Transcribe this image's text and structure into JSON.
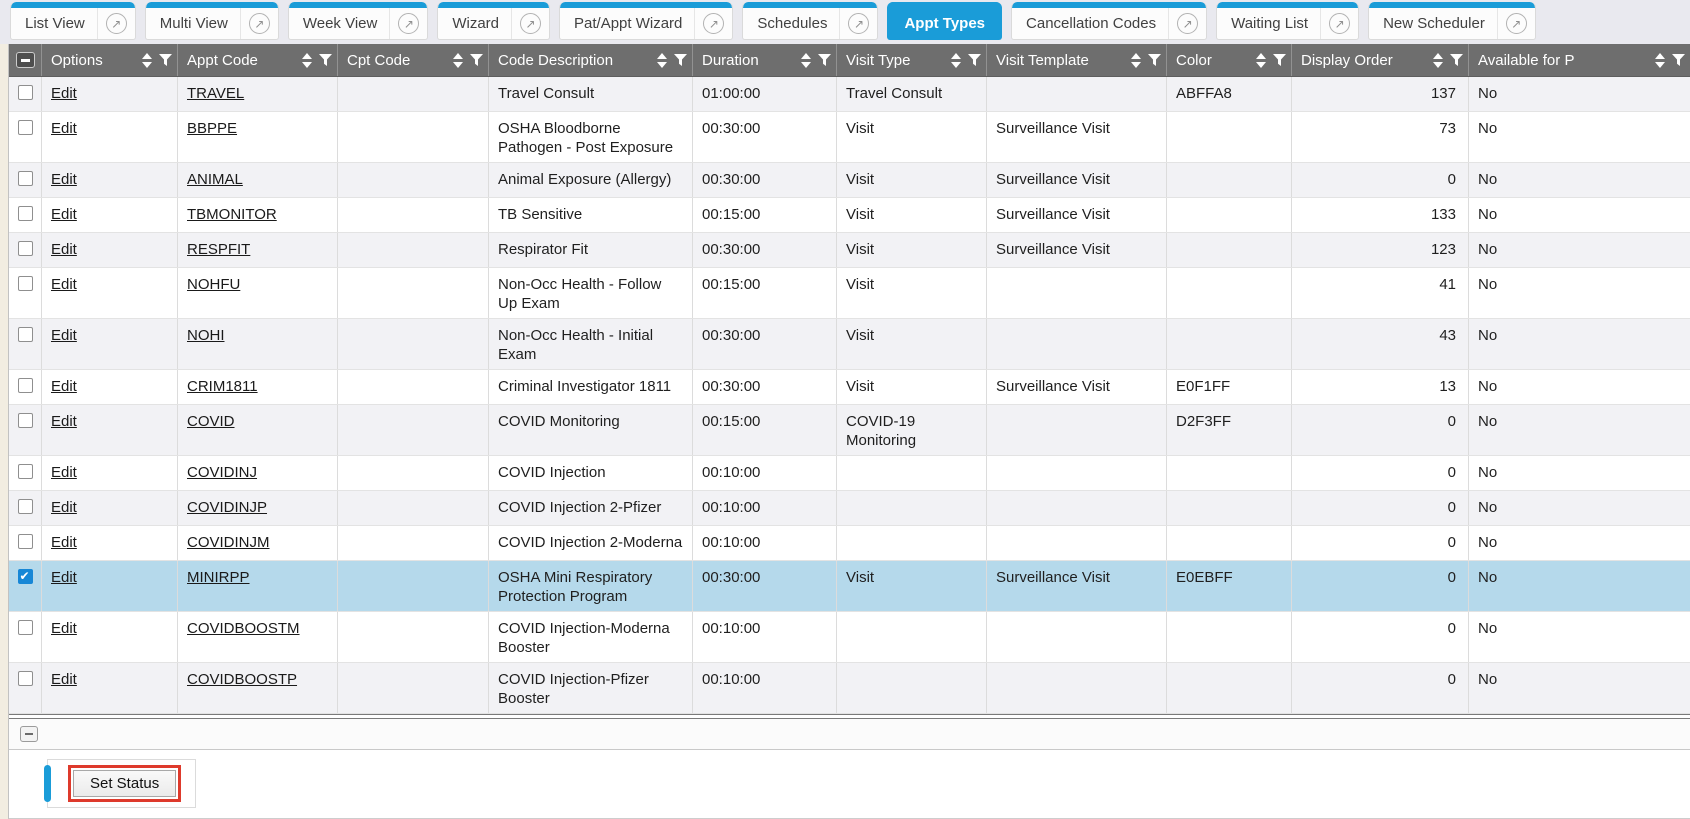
{
  "tab_bar": {
    "tabs": [
      {
        "label": "List View",
        "active": false
      },
      {
        "label": "Multi View",
        "active": false
      },
      {
        "label": "Week View",
        "active": false
      },
      {
        "label": "Wizard",
        "active": false
      },
      {
        "label": "Pat/Appt Wizard",
        "active": false
      },
      {
        "label": "Schedules",
        "active": false
      },
      {
        "label": "Appt Types",
        "active": true
      },
      {
        "label": "Cancellation Codes",
        "active": false
      },
      {
        "label": "Waiting List",
        "active": false
      },
      {
        "label": "New Scheduler",
        "active": false
      }
    ],
    "external_icon": "↗"
  },
  "grid": {
    "columns": [
      "Options",
      "Appt Code",
      "Cpt Code",
      "Code Description",
      "Duration",
      "Visit Type",
      "Visit Template",
      "Color",
      "Display Order",
      "Available for P"
    ],
    "edit_label": "Edit",
    "rows": [
      {
        "checked": false,
        "selected": false,
        "appt_code": "TRAVEL",
        "cpt_code": "",
        "code_description": "Travel Consult",
        "duration": "01:00:00",
        "visit_type": "Travel Consult",
        "visit_template": "",
        "color": "ABFFA8",
        "display_order": "137",
        "available": "No"
      },
      {
        "checked": false,
        "selected": false,
        "appt_code": "BBPPE",
        "cpt_code": "",
        "code_description": "OSHA Bloodborne Pathogen - Post Exposure",
        "duration": "00:30:00",
        "visit_type": "Visit",
        "visit_template": "Surveillance Visit",
        "color": "",
        "display_order": "73",
        "available": "No"
      },
      {
        "checked": false,
        "selected": false,
        "appt_code": "ANIMAL",
        "cpt_code": "",
        "code_description": "Animal Exposure (Allergy)",
        "duration": "00:30:00",
        "visit_type": "Visit",
        "visit_template": "Surveillance Visit",
        "color": "",
        "display_order": "0",
        "available": "No"
      },
      {
        "checked": false,
        "selected": false,
        "appt_code": "TBMONITOR",
        "cpt_code": "",
        "code_description": "TB Sensitive",
        "duration": "00:15:00",
        "visit_type": "Visit",
        "visit_template": "Surveillance Visit",
        "color": "",
        "display_order": "133",
        "available": "No"
      },
      {
        "checked": false,
        "selected": false,
        "appt_code": "RESPFIT",
        "cpt_code": "",
        "code_description": "Respirator Fit",
        "duration": "00:30:00",
        "visit_type": "Visit",
        "visit_template": "Surveillance Visit",
        "color": "",
        "display_order": "123",
        "available": "No"
      },
      {
        "checked": false,
        "selected": false,
        "appt_code": "NOHFU",
        "cpt_code": "",
        "code_description": "Non-Occ Health - Follow Up Exam",
        "duration": "00:15:00",
        "visit_type": "Visit",
        "visit_template": "",
        "color": "",
        "display_order": "41",
        "available": "No"
      },
      {
        "checked": false,
        "selected": false,
        "appt_code": "NOHI",
        "cpt_code": "",
        "code_description": "Non-Occ Health - Initial Exam",
        "duration": "00:30:00",
        "visit_type": "Visit",
        "visit_template": "",
        "color": "",
        "display_order": "43",
        "available": "No"
      },
      {
        "checked": false,
        "selected": false,
        "appt_code": "CRIM1811",
        "cpt_code": "",
        "code_description": "Criminal Investigator 1811",
        "duration": "00:30:00",
        "visit_type": "Visit",
        "visit_template": "Surveillance Visit",
        "color": "E0F1FF",
        "display_order": "13",
        "available": "No"
      },
      {
        "checked": false,
        "selected": false,
        "appt_code": "COVID",
        "cpt_code": "",
        "code_description": "COVID Monitoring",
        "duration": "00:15:00",
        "visit_type": "COVID-19 Monitoring",
        "visit_template": "",
        "color": "D2F3FF",
        "display_order": "0",
        "available": "No"
      },
      {
        "checked": false,
        "selected": false,
        "appt_code": "COVIDINJ",
        "cpt_code": "",
        "code_description": "COVID Injection",
        "duration": "00:10:00",
        "visit_type": "",
        "visit_template": "",
        "color": "",
        "display_order": "0",
        "available": "No"
      },
      {
        "checked": false,
        "selected": false,
        "appt_code": "COVIDINJP",
        "cpt_code": "",
        "code_description": "COVID Injection 2-Pfizer",
        "duration": "00:10:00",
        "visit_type": "",
        "visit_template": "",
        "color": "",
        "display_order": "0",
        "available": "No"
      },
      {
        "checked": false,
        "selected": false,
        "appt_code": "COVIDINJM",
        "cpt_code": "",
        "code_description": "COVID Injection 2-Moderna",
        "duration": "00:10:00",
        "visit_type": "",
        "visit_template": "",
        "color": "",
        "display_order": "0",
        "available": "No"
      },
      {
        "checked": true,
        "selected": true,
        "appt_code": "MINIRPP",
        "cpt_code": "",
        "code_description": "OSHA Mini Respiratory Protection Program",
        "duration": "00:30:00",
        "visit_type": "Visit",
        "visit_template": "Surveillance Visit",
        "color": "E0EBFF",
        "display_order": "0",
        "available": "No"
      },
      {
        "checked": false,
        "selected": false,
        "appt_code": "COVIDBOOSTM",
        "cpt_code": "",
        "code_description": "COVID Injection-Moderna Booster",
        "duration": "00:10:00",
        "visit_type": "",
        "visit_template": "",
        "color": "",
        "display_order": "0",
        "available": "No"
      },
      {
        "checked": false,
        "selected": false,
        "appt_code": "COVIDBOOSTP",
        "cpt_code": "",
        "code_description": "COVID Injection-Pfizer Booster",
        "duration": "00:10:00",
        "visit_type": "",
        "visit_template": "",
        "color": "",
        "display_order": "0",
        "available": "No"
      }
    ]
  },
  "footer": {
    "set_status_label": "Set Status"
  },
  "colors": {
    "accent_blue": "#1A9CD8",
    "header_gray": "#6E6E6E",
    "selected_row_blue": "#B5D9EB",
    "row_stripe": "#F2F2F5",
    "annotation_red": "#DE3A2C",
    "checked_checkbox_blue": "#1787D6"
  }
}
